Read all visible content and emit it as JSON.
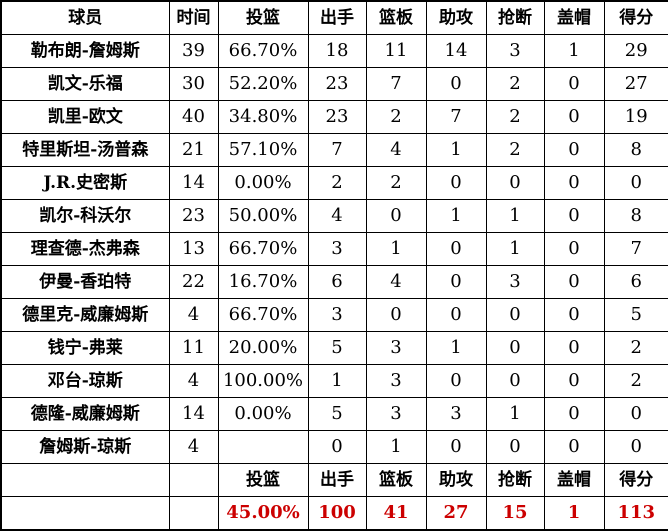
{
  "colors": {
    "background": "#ffffff",
    "border": "#000000",
    "text": "#000000",
    "totals_red": "#cc0000"
  },
  "table": {
    "columns": [
      "球员",
      "时间",
      "投篮",
      "出手",
      "篮板",
      "助攻",
      "抢断",
      "盖帽",
      "得分"
    ],
    "column_keys": [
      "name",
      "time",
      "fg_pct",
      "fga",
      "reb",
      "ast",
      "stl",
      "blk",
      "pts"
    ],
    "rows": [
      {
        "name": "勒布朗-詹姆斯",
        "time": "39",
        "fg_pct": "66.70%",
        "fga": "18",
        "reb": "11",
        "ast": "14",
        "stl": "3",
        "blk": "1",
        "pts": "29"
      },
      {
        "name": "凯文-乐福",
        "time": "30",
        "fg_pct": "52.20%",
        "fga": "23",
        "reb": "7",
        "ast": "0",
        "stl": "2",
        "blk": "0",
        "pts": "27"
      },
      {
        "name": "凯里-欧文",
        "time": "40",
        "fg_pct": "34.80%",
        "fga": "23",
        "reb": "2",
        "ast": "7",
        "stl": "2",
        "blk": "0",
        "pts": "19"
      },
      {
        "name": "特里斯坦-汤普森",
        "time": "21",
        "fg_pct": "57.10%",
        "fga": "7",
        "reb": "4",
        "ast": "1",
        "stl": "2",
        "blk": "0",
        "pts": "8"
      },
      {
        "name": "J.R.史密斯",
        "time": "14",
        "fg_pct": "0.00%",
        "fga": "2",
        "reb": "2",
        "ast": "0",
        "stl": "0",
        "blk": "0",
        "pts": "0"
      },
      {
        "name": "凯尔-科沃尔",
        "time": "23",
        "fg_pct": "50.00%",
        "fga": "4",
        "reb": "0",
        "ast": "1",
        "stl": "1",
        "blk": "0",
        "pts": "8"
      },
      {
        "name": "理查德-杰弗森",
        "time": "13",
        "fg_pct": "66.70%",
        "fga": "3",
        "reb": "1",
        "ast": "0",
        "stl": "1",
        "blk": "0",
        "pts": "7"
      },
      {
        "name": "伊曼-香珀特",
        "time": "22",
        "fg_pct": "16.70%",
        "fga": "6",
        "reb": "4",
        "ast": "0",
        "stl": "3",
        "blk": "0",
        "pts": "6"
      },
      {
        "name": "德里克-威廉姆斯",
        "time": "4",
        "fg_pct": "66.70%",
        "fga": "3",
        "reb": "0",
        "ast": "0",
        "stl": "0",
        "blk": "0",
        "pts": "5"
      },
      {
        "name": "钱宁-弗莱",
        "time": "11",
        "fg_pct": "20.00%",
        "fga": "5",
        "reb": "3",
        "ast": "1",
        "stl": "0",
        "blk": "0",
        "pts": "2"
      },
      {
        "name": "邓台-琼斯",
        "time": "4",
        "fg_pct": "100.00%",
        "fga": "1",
        "reb": "3",
        "ast": "0",
        "stl": "0",
        "blk": "0",
        "pts": "2"
      },
      {
        "name": "德隆-威廉姆斯",
        "time": "14",
        "fg_pct": "0.00%",
        "fga": "5",
        "reb": "3",
        "ast": "3",
        "stl": "1",
        "blk": "0",
        "pts": "0"
      },
      {
        "name": "詹姆斯-琼斯",
        "time": "4",
        "fg_pct": "",
        "fga": "0",
        "reb": "1",
        "ast": "0",
        "stl": "0",
        "blk": "0",
        "pts": "0"
      }
    ],
    "totals_header": [
      "投篮",
      "出手",
      "篮板",
      "助攻",
      "抢断",
      "盖帽",
      "得分"
    ],
    "totals": {
      "fg_pct": "45.00%",
      "fga": "100",
      "reb": "41",
      "ast": "27",
      "stl": "15",
      "blk": "1",
      "pts": "113"
    }
  },
  "chart_data": {
    "type": "table",
    "title": "",
    "columns": [
      "球员",
      "时间",
      "投篮",
      "出手",
      "篮板",
      "助攻",
      "抢断",
      "盖帽",
      "得分"
    ],
    "rows": [
      [
        "勒布朗-詹姆斯",
        39,
        "66.70%",
        18,
        11,
        14,
        3,
        1,
        29
      ],
      [
        "凯文-乐福",
        30,
        "52.20%",
        23,
        7,
        0,
        2,
        0,
        27
      ],
      [
        "凯里-欧文",
        40,
        "34.80%",
        23,
        2,
        7,
        2,
        0,
        19
      ],
      [
        "特里斯坦-汤普森",
        21,
        "57.10%",
        7,
        4,
        1,
        2,
        0,
        8
      ],
      [
        "J.R.史密斯",
        14,
        "0.00%",
        2,
        2,
        0,
        0,
        0,
        0
      ],
      [
        "凯尔-科沃尔",
        23,
        "50.00%",
        4,
        0,
        1,
        1,
        0,
        8
      ],
      [
        "理查德-杰弗森",
        13,
        "66.70%",
        3,
        1,
        0,
        1,
        0,
        7
      ],
      [
        "伊曼-香珀特",
        22,
        "16.70%",
        6,
        4,
        0,
        3,
        0,
        6
      ],
      [
        "德里克-威廉姆斯",
        4,
        "66.70%",
        3,
        0,
        0,
        0,
        0,
        5
      ],
      [
        "钱宁-弗莱",
        11,
        "20.00%",
        5,
        3,
        1,
        0,
        0,
        2
      ],
      [
        "邓台-琼斯",
        4,
        "100.00%",
        1,
        3,
        0,
        0,
        0,
        2
      ],
      [
        "德隆-威廉姆斯",
        14,
        "0.00%",
        5,
        3,
        3,
        1,
        0,
        0
      ],
      [
        "詹姆斯-琼斯",
        4,
        "",
        0,
        1,
        0,
        0,
        0,
        0
      ]
    ],
    "totals_row": [
      "",
      "",
      "45.00%",
      100,
      41,
      27,
      15,
      1,
      113
    ],
    "totals_color": "#cc0000"
  }
}
